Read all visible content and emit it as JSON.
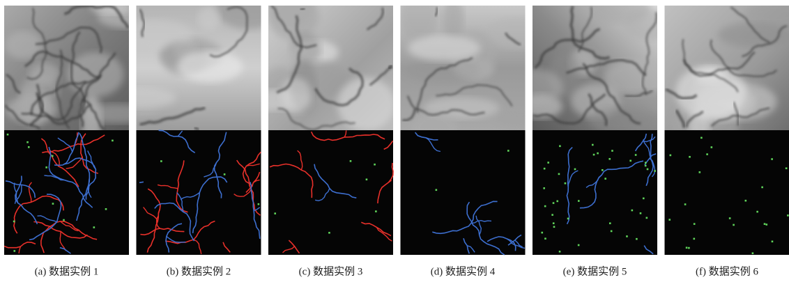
{
  "panels": [
    {
      "caption": "(a) 数据实例 1"
    },
    {
      "caption": "(b) 数据实例 2"
    },
    {
      "caption": "(c) 数据实例 3"
    },
    {
      "caption": "(d) 数据实例 4"
    },
    {
      "caption": "(e) 数据实例 5"
    },
    {
      "caption": "(f) 数据实例 6"
    }
  ]
}
